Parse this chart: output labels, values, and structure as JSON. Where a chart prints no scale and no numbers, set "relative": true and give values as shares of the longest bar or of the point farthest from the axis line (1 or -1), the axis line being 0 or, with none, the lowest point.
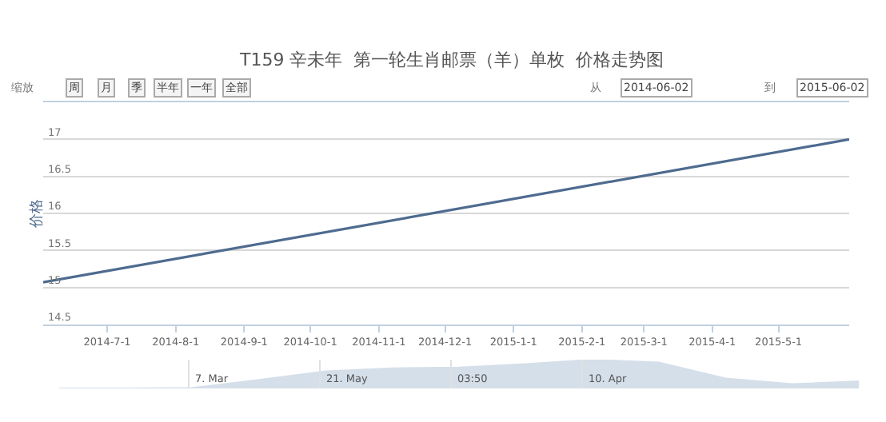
{
  "chart_data": [
    {
      "type": "line",
      "title": "T159 辛未年  第一轮生肖邮票（羊）单枚  价格走势图",
      "ylabel": "价格",
      "marker": "none",
      "grid": "y",
      "annotations": [
        "缩放",
        "周",
        "月",
        "季",
        "半年",
        "一年",
        "全部",
        "从",
        "2014-06-02",
        "到",
        "2015-06-02"
      ],
      "x": [
        "2014-06-02",
        "2015-06-02"
      ],
      "series": [
        {
          "color": "#4e6b8f",
          "values": [
            15.07,
            17.0
          ]
        }
      ],
      "xlim": [
        "2014-06-02",
        "2015-06-02"
      ],
      "xticks": [
        {
          "value": "2014-07-01",
          "label": "2014-7-1"
        },
        {
          "value": "2014-08-01",
          "label": "2014-8-1"
        },
        {
          "value": "2014-09-01",
          "label": "2014-9-1"
        },
        {
          "value": "2014-10-01",
          "label": "2014-10-1"
        },
        {
          "value": "2014-11-01",
          "label": "2014-11-1"
        },
        {
          "value": "2014-12-01",
          "label": "2014-12-1"
        },
        {
          "value": "2015-01-01",
          "label": "2015-1-1"
        },
        {
          "value": "2015-02-01",
          "label": "2015-2-1"
        },
        {
          "value": "2015-03-01",
          "label": "2015-3-1"
        },
        {
          "value": "2015-04-01",
          "label": "2015-4-1"
        },
        {
          "value": "2015-05-01",
          "label": "2015-5-1"
        }
      ],
      "ylim": [
        14.5,
        17.5
      ],
      "yticks": [
        14.5,
        15,
        15.5,
        16,
        16.5,
        17
      ]
    },
    {
      "type": "area",
      "relative": true,
      "categories": [
        null,
        null,
        null,
        null,
        null,
        null,
        null,
        null,
        null,
        null,
        null,
        null,
        null
      ],
      "series": [
        {
          "color": "#d5dfea",
          "values": [
            0,
            0,
            0.02,
            0.3,
            0.6,
            0.7,
            0.73,
            0.85,
            1,
            0.9,
            0.35,
            0.15,
            0.25
          ]
        }
      ],
      "annotations": [
        "7. Mar",
        "21. May",
        "03:50",
        "10. Apr"
      ]
    }
  ]
}
